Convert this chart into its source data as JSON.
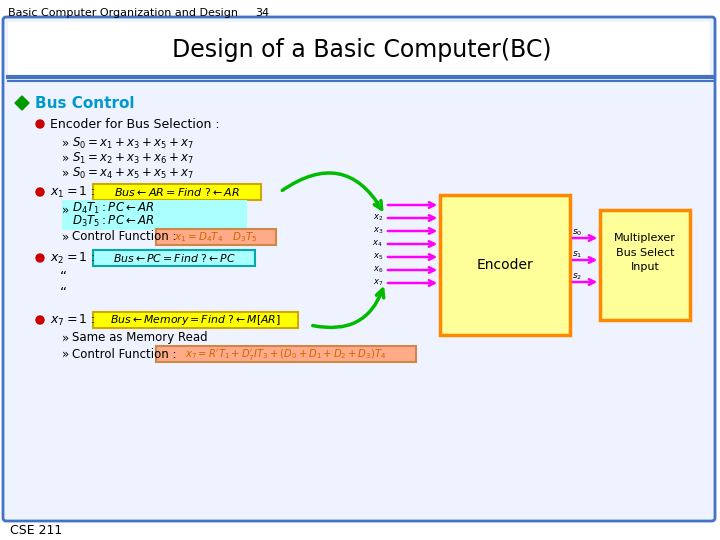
{
  "header_text": "Basic Computer Organization and Design",
  "page_num": "34",
  "title": "Design of a Basic Computer(BC)",
  "footer_text": "CSE 211",
  "bg_color": "#FFFFFF",
  "slide_border_color": "#4472C4",
  "slide_border_color2": "#6699CC",
  "green_diamond_color": "#009900",
  "green_diamond_text": "#0099CC",
  "red_bullet_color": "#CC0000",
  "encoder_box_color": "#FFFF99",
  "encoder_border_color": "#FF8800",
  "mux_box_color": "#FFFF99",
  "mux_border_color": "#FF8800",
  "arrow_pink_color": "#FF00FF",
  "arrow_green_color": "#00BB00",
  "highlight_yellow": "#FFFF00",
  "highlight_peach": "#FFAA88",
  "highlight_cyan": "#AAFFFF",
  "body_bg": "#EEF3FF",
  "title_bg": "#FFFFFF",
  "dx_label_color": "#CC6600"
}
